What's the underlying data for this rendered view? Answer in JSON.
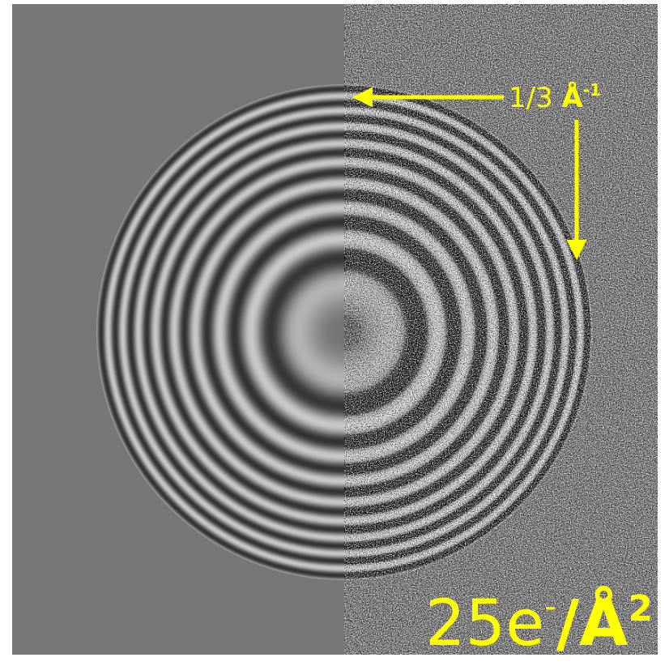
{
  "labels": {
    "scale": {
      "text": "1/3",
      "unit": "Å",
      "exponent": "-1"
    },
    "dose": {
      "value": "25e",
      "charge": "-",
      "unit": "/Å",
      "exponent": "2"
    }
  }
}
